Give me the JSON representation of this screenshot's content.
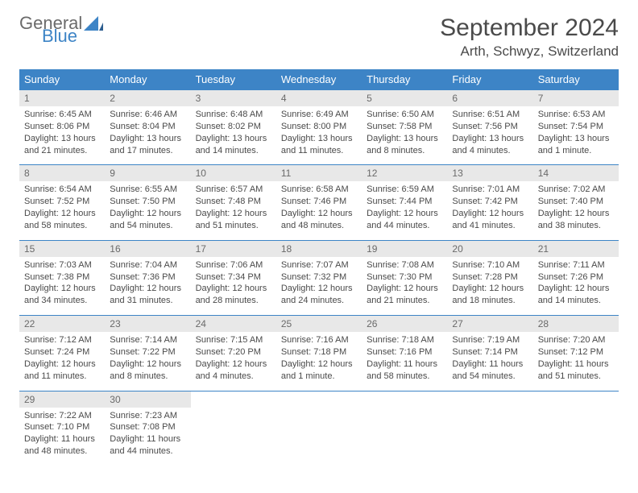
{
  "brand": {
    "general": "General",
    "blue": "Blue"
  },
  "title": "September 2024",
  "location": "Arth, Schwyz, Switzerland",
  "colors": {
    "header_bg": "#3d84c6",
    "header_text": "#ffffff",
    "daynum_bg": "#e8e8e8",
    "text": "#4a4a4a",
    "logo_blue": "#3d84c6",
    "logo_gray": "#6b6b6b"
  },
  "weekdays": [
    "Sunday",
    "Monday",
    "Tuesday",
    "Wednesday",
    "Thursday",
    "Friday",
    "Saturday"
  ],
  "weeks": [
    {
      "nums": [
        "1",
        "2",
        "3",
        "4",
        "5",
        "6",
        "7"
      ],
      "cells": [
        {
          "sunrise": "Sunrise: 6:45 AM",
          "sunset": "Sunset: 8:06 PM",
          "day1": "Daylight: 13 hours",
          "day2": "and 21 minutes."
        },
        {
          "sunrise": "Sunrise: 6:46 AM",
          "sunset": "Sunset: 8:04 PM",
          "day1": "Daylight: 13 hours",
          "day2": "and 17 minutes."
        },
        {
          "sunrise": "Sunrise: 6:48 AM",
          "sunset": "Sunset: 8:02 PM",
          "day1": "Daylight: 13 hours",
          "day2": "and 14 minutes."
        },
        {
          "sunrise": "Sunrise: 6:49 AM",
          "sunset": "Sunset: 8:00 PM",
          "day1": "Daylight: 13 hours",
          "day2": "and 11 minutes."
        },
        {
          "sunrise": "Sunrise: 6:50 AM",
          "sunset": "Sunset: 7:58 PM",
          "day1": "Daylight: 13 hours",
          "day2": "and 8 minutes."
        },
        {
          "sunrise": "Sunrise: 6:51 AM",
          "sunset": "Sunset: 7:56 PM",
          "day1": "Daylight: 13 hours",
          "day2": "and 4 minutes."
        },
        {
          "sunrise": "Sunrise: 6:53 AM",
          "sunset": "Sunset: 7:54 PM",
          "day1": "Daylight: 13 hours",
          "day2": "and 1 minute."
        }
      ]
    },
    {
      "nums": [
        "8",
        "9",
        "10",
        "11",
        "12",
        "13",
        "14"
      ],
      "cells": [
        {
          "sunrise": "Sunrise: 6:54 AM",
          "sunset": "Sunset: 7:52 PM",
          "day1": "Daylight: 12 hours",
          "day2": "and 58 minutes."
        },
        {
          "sunrise": "Sunrise: 6:55 AM",
          "sunset": "Sunset: 7:50 PM",
          "day1": "Daylight: 12 hours",
          "day2": "and 54 minutes."
        },
        {
          "sunrise": "Sunrise: 6:57 AM",
          "sunset": "Sunset: 7:48 PM",
          "day1": "Daylight: 12 hours",
          "day2": "and 51 minutes."
        },
        {
          "sunrise": "Sunrise: 6:58 AM",
          "sunset": "Sunset: 7:46 PM",
          "day1": "Daylight: 12 hours",
          "day2": "and 48 minutes."
        },
        {
          "sunrise": "Sunrise: 6:59 AM",
          "sunset": "Sunset: 7:44 PM",
          "day1": "Daylight: 12 hours",
          "day2": "and 44 minutes."
        },
        {
          "sunrise": "Sunrise: 7:01 AM",
          "sunset": "Sunset: 7:42 PM",
          "day1": "Daylight: 12 hours",
          "day2": "and 41 minutes."
        },
        {
          "sunrise": "Sunrise: 7:02 AM",
          "sunset": "Sunset: 7:40 PM",
          "day1": "Daylight: 12 hours",
          "day2": "and 38 minutes."
        }
      ]
    },
    {
      "nums": [
        "15",
        "16",
        "17",
        "18",
        "19",
        "20",
        "21"
      ],
      "cells": [
        {
          "sunrise": "Sunrise: 7:03 AM",
          "sunset": "Sunset: 7:38 PM",
          "day1": "Daylight: 12 hours",
          "day2": "and 34 minutes."
        },
        {
          "sunrise": "Sunrise: 7:04 AM",
          "sunset": "Sunset: 7:36 PM",
          "day1": "Daylight: 12 hours",
          "day2": "and 31 minutes."
        },
        {
          "sunrise": "Sunrise: 7:06 AM",
          "sunset": "Sunset: 7:34 PM",
          "day1": "Daylight: 12 hours",
          "day2": "and 28 minutes."
        },
        {
          "sunrise": "Sunrise: 7:07 AM",
          "sunset": "Sunset: 7:32 PM",
          "day1": "Daylight: 12 hours",
          "day2": "and 24 minutes."
        },
        {
          "sunrise": "Sunrise: 7:08 AM",
          "sunset": "Sunset: 7:30 PM",
          "day1": "Daylight: 12 hours",
          "day2": "and 21 minutes."
        },
        {
          "sunrise": "Sunrise: 7:10 AM",
          "sunset": "Sunset: 7:28 PM",
          "day1": "Daylight: 12 hours",
          "day2": "and 18 minutes."
        },
        {
          "sunrise": "Sunrise: 7:11 AM",
          "sunset": "Sunset: 7:26 PM",
          "day1": "Daylight: 12 hours",
          "day2": "and 14 minutes."
        }
      ]
    },
    {
      "nums": [
        "22",
        "23",
        "24",
        "25",
        "26",
        "27",
        "28"
      ],
      "cells": [
        {
          "sunrise": "Sunrise: 7:12 AM",
          "sunset": "Sunset: 7:24 PM",
          "day1": "Daylight: 12 hours",
          "day2": "and 11 minutes."
        },
        {
          "sunrise": "Sunrise: 7:14 AM",
          "sunset": "Sunset: 7:22 PM",
          "day1": "Daylight: 12 hours",
          "day2": "and 8 minutes."
        },
        {
          "sunrise": "Sunrise: 7:15 AM",
          "sunset": "Sunset: 7:20 PM",
          "day1": "Daylight: 12 hours",
          "day2": "and 4 minutes."
        },
        {
          "sunrise": "Sunrise: 7:16 AM",
          "sunset": "Sunset: 7:18 PM",
          "day1": "Daylight: 12 hours",
          "day2": "and 1 minute."
        },
        {
          "sunrise": "Sunrise: 7:18 AM",
          "sunset": "Sunset: 7:16 PM",
          "day1": "Daylight: 11 hours",
          "day2": "and 58 minutes."
        },
        {
          "sunrise": "Sunrise: 7:19 AM",
          "sunset": "Sunset: 7:14 PM",
          "day1": "Daylight: 11 hours",
          "day2": "and 54 minutes."
        },
        {
          "sunrise": "Sunrise: 7:20 AM",
          "sunset": "Sunset: 7:12 PM",
          "day1": "Daylight: 11 hours",
          "day2": "and 51 minutes."
        }
      ]
    },
    {
      "nums": [
        "29",
        "30",
        "",
        "",
        "",
        "",
        ""
      ],
      "cells": [
        {
          "sunrise": "Sunrise: 7:22 AM",
          "sunset": "Sunset: 7:10 PM",
          "day1": "Daylight: 11 hours",
          "day2": "and 48 minutes."
        },
        {
          "sunrise": "Sunrise: 7:23 AM",
          "sunset": "Sunset: 7:08 PM",
          "day1": "Daylight: 11 hours",
          "day2": "and 44 minutes."
        },
        null,
        null,
        null,
        null,
        null
      ]
    }
  ]
}
